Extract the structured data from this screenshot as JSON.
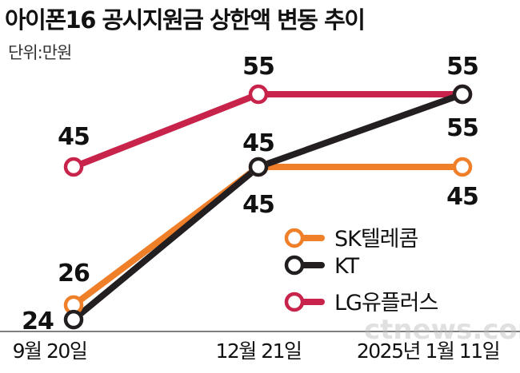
{
  "chart_data": {
    "type": "line",
    "title": "아이폰16 공시지원금 상한액 변동 추이",
    "unit": "단위:만원",
    "categories": [
      "9월 20일",
      "12월 21일",
      "2025년 1월 11일"
    ],
    "series": [
      {
        "name": "SK텔레콤",
        "values": [
          26,
          45,
          45
        ],
        "color": "#f07f2a"
      },
      {
        "name": "KT",
        "values": [
          24,
          45,
          55
        ],
        "color": "#231f20"
      },
      {
        "name": "LG유플러스",
        "values": [
          45,
          55,
          55
        ],
        "color": "#c8234a"
      }
    ],
    "legend": "bottom-right",
    "grid": false,
    "watermark": "ctnews.com"
  }
}
